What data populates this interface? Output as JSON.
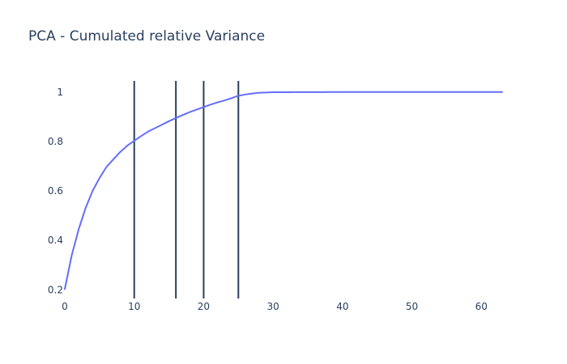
{
  "chart_data": {
    "type": "line",
    "title": "PCA - Cumulated relative Variance",
    "xlabel": "",
    "ylabel": "",
    "xlim": [
      0,
      63
    ],
    "ylim": [
      0.165,
      1.045
    ],
    "x_ticks": [
      0,
      10,
      20,
      30,
      40,
      50,
      60
    ],
    "y_ticks": [
      0.2,
      0.4,
      0.6,
      0.8,
      1
    ],
    "x_tick_labels": [
      "0",
      "10",
      "20",
      "30",
      "40",
      "50",
      "60"
    ],
    "y_tick_labels": [
      "0.2",
      "0.4",
      "0.6",
      "0.8",
      "1"
    ],
    "grid": false,
    "series": [
      {
        "color": "#636efa",
        "x": [
          0,
          1,
          2,
          3,
          4,
          5,
          6,
          7,
          8,
          9,
          10,
          11,
          12,
          13,
          14,
          15,
          16,
          17,
          18,
          19,
          20,
          21,
          22,
          23,
          24,
          25,
          26,
          27,
          28,
          29,
          30,
          31,
          32,
          33,
          34,
          35,
          36,
          37,
          38,
          39,
          40,
          41,
          42,
          43,
          44,
          45,
          46,
          47,
          48,
          49,
          50,
          51,
          52,
          53,
          54,
          55,
          56,
          57,
          58,
          59,
          60,
          61,
          62,
          63
        ],
        "y": [
          0.203,
          0.34,
          0.445,
          0.531,
          0.6,
          0.652,
          0.697,
          0.728,
          0.758,
          0.783,
          0.803,
          0.822,
          0.84,
          0.854,
          0.868,
          0.882,
          0.895,
          0.907,
          0.919,
          0.929,
          0.939,
          0.949,
          0.958,
          0.966,
          0.975,
          0.985,
          0.99,
          0.994,
          0.997,
          0.998,
          0.999,
          0.999,
          0.9993,
          0.9995,
          0.9996,
          0.9997,
          0.9998,
          0.9998,
          0.9999,
          0.9999,
          1.0,
          1.0,
          1.0,
          1.0,
          1.0,
          1.0,
          1.0,
          1.0,
          1.0,
          1.0,
          1.0,
          1.0,
          1.0,
          1.0,
          1.0,
          1.0,
          1.0,
          1.0,
          1.0,
          1.0,
          1.0,
          1.0,
          1.0,
          1.0
        ]
      }
    ],
    "vertical_lines": {
      "color": "#2a3f5f",
      "x": [
        10,
        16,
        20,
        25
      ]
    }
  }
}
